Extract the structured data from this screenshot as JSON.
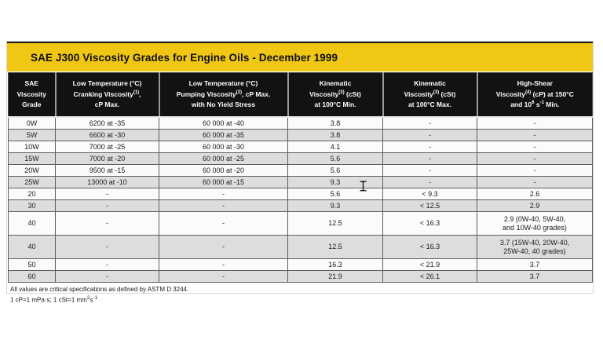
{
  "title": {
    "text": "SAE J300 Viscosity Grades for Engine Oils - December 1999"
  },
  "colors": {
    "title_band_yellow": "#F0C714",
    "header_background": "#121212",
    "row_shaded": "#DDDDDD",
    "row_plain": "#FBFBFB"
  },
  "table": {
    "headers": [
      "SAE\nViscosity\nGrade",
      "Low Temperature (°C)\nCranking Viscosity^{(1)},\ncP Max.",
      "Low Temperature (°C)\nPumping Viscosity^{(2)}, cP Max.\nwith No Yield Stress",
      "Kinematic\nViscosity^{(3)} (cSt)\nat 100°C Min.",
      "Kinematic\nViscosity^{(3)} (cSt)\nat 100°C Max.",
      "High-Shear\nViscosity^{(4)} (cP) at 150°C\nand 10^{6} s^{-1} Min."
    ],
    "rows": [
      {
        "cells": [
          "0W",
          "6200 at -35",
          "60 000 at -40",
          "3.8",
          "-",
          "-"
        ]
      },
      {
        "cells": [
          "5W",
          "6600 at -30",
          "60 000 at -35",
          "3.8",
          "-",
          "-"
        ]
      },
      {
        "cells": [
          "10W",
          "7000 at -25",
          "60 000 at -30",
          "4.1",
          "-",
          "-"
        ]
      },
      {
        "cells": [
          "15W",
          "7000 at -20",
          "60 000 at -25",
          "5.6",
          "-",
          "-"
        ]
      },
      {
        "cells": [
          "20W",
          "9500 at -15",
          "60 000 at -20",
          "5.6",
          "-",
          "-"
        ]
      },
      {
        "cells": [
          "25W",
          "13000 at -10",
          "60 000 at -15",
          "9.3",
          "-",
          "-"
        ]
      },
      {
        "cells": [
          "20",
          "-",
          "-",
          "5.6",
          "< 9.3",
          "2.6"
        ]
      },
      {
        "cells": [
          "30",
          "-",
          "-",
          "9.3",
          "< 12.5",
          "2.9"
        ]
      },
      {
        "cells": [
          "40",
          "-",
          "-",
          "12.5",
          "< 16.3",
          "2.9 (0W-40, 5W-40,\nand 10W-40 grades)"
        ]
      },
      {
        "cells": [
          "40",
          "-",
          "-",
          "12.5",
          "< 16.3",
          "3.7 (15W-40, 20W-40,\n25W-40, 40 grades)"
        ]
      },
      {
        "cells": [
          "50",
          "-",
          "-",
          "16.3",
          "< 21.9",
          "3.7"
        ]
      },
      {
        "cells": [
          "60",
          "-",
          "-",
          "21.9",
          "< 26.1",
          "3.7"
        ]
      }
    ]
  },
  "footnotes": [
    "All values are critical specifications as defined by ASTM D 3244.",
    "1 cP=1 mPa·s;  1 cSt=1 mm^{2}s^{-1}"
  ],
  "cursor": {
    "icon": "text-ibeam-cursor"
  }
}
